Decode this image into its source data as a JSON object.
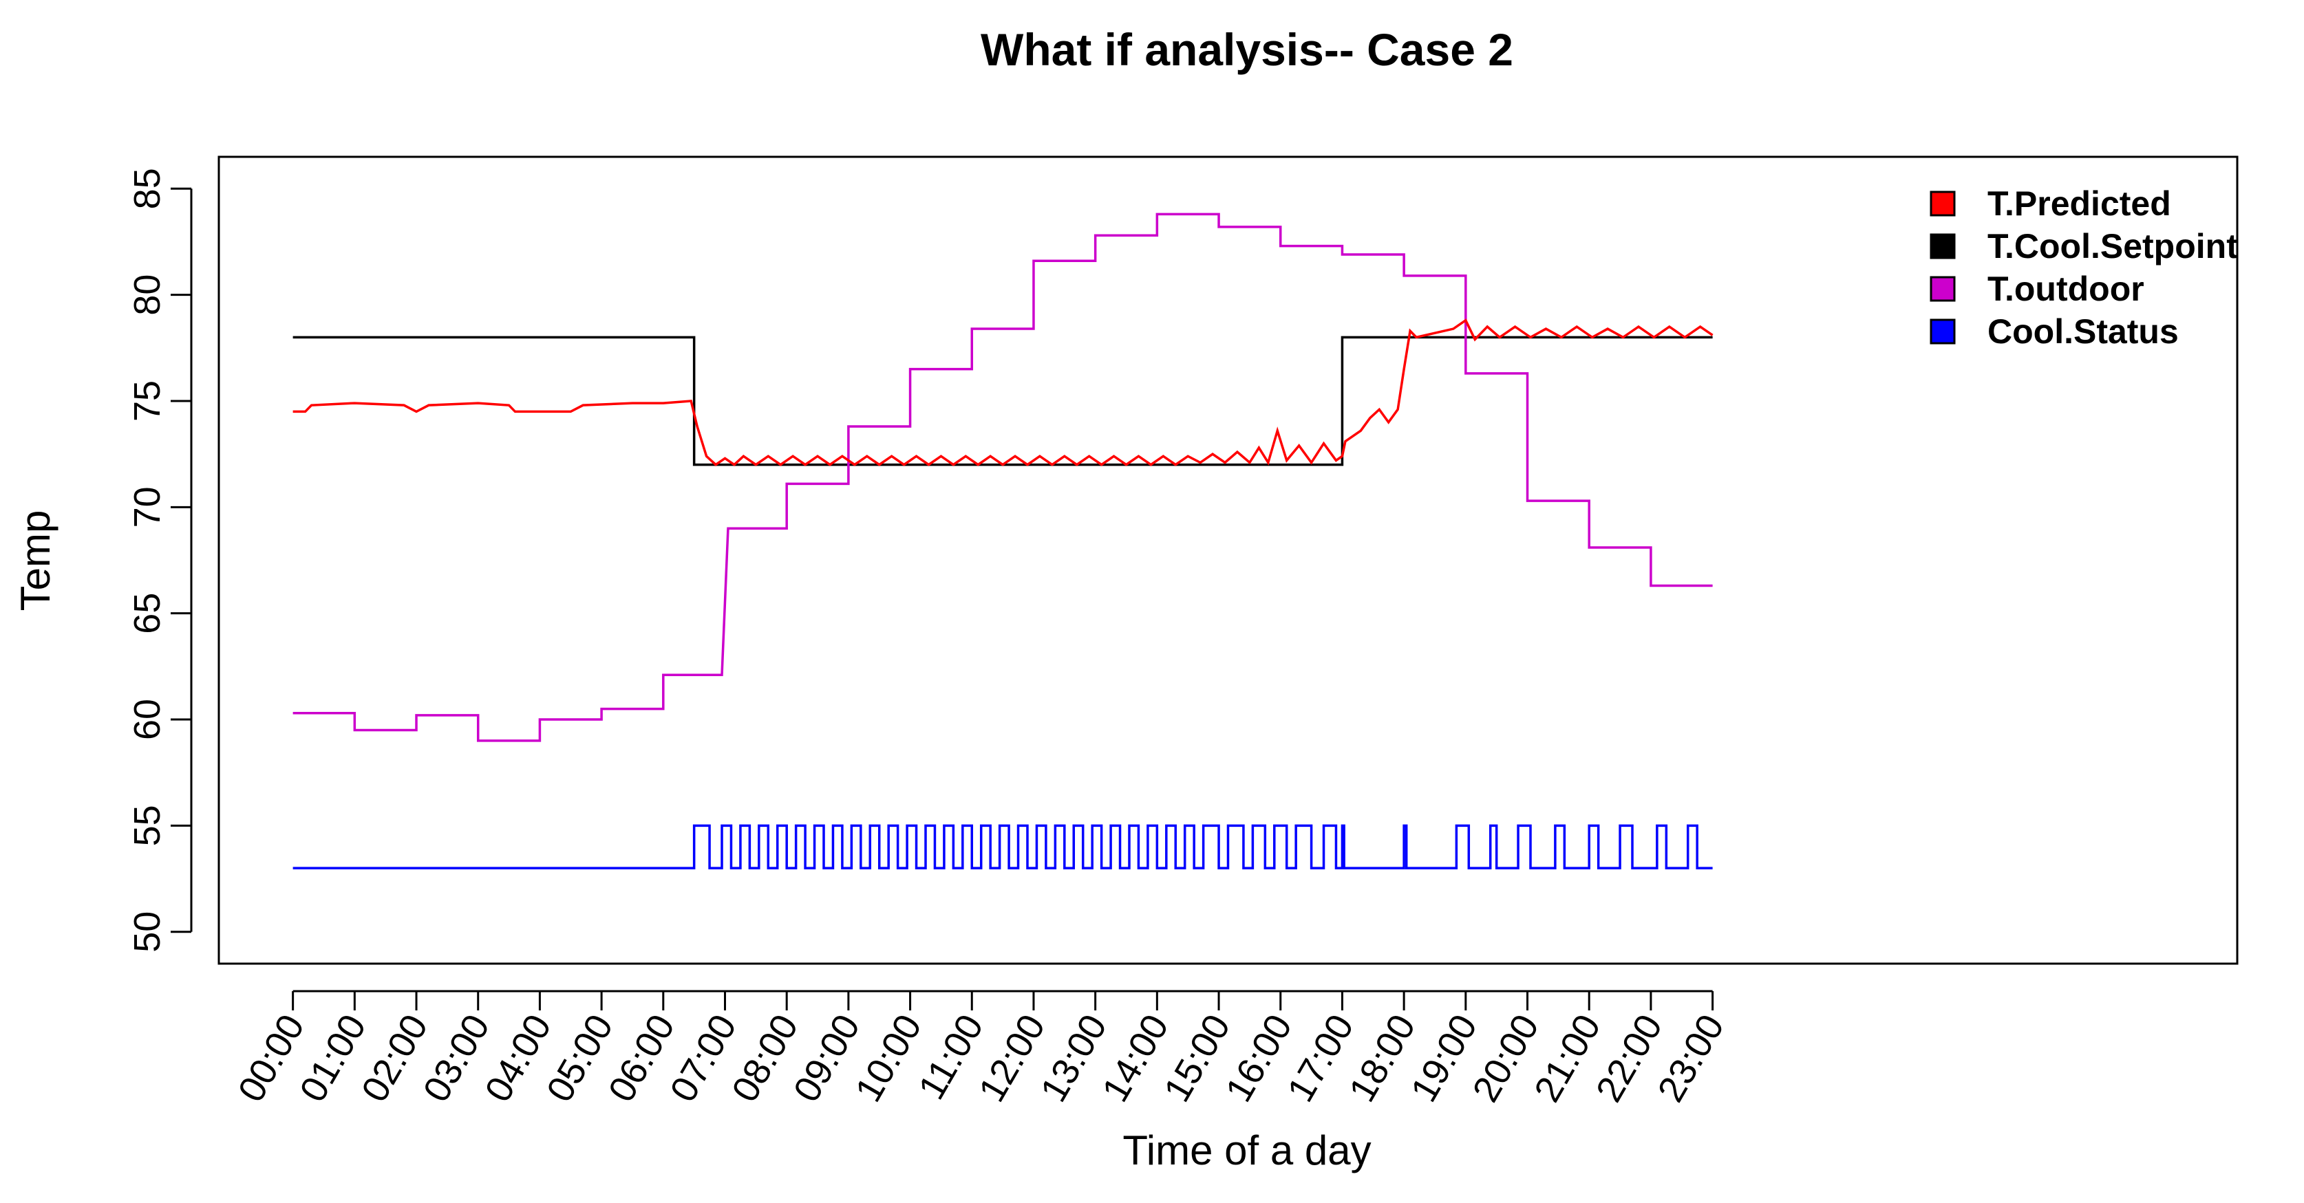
{
  "chart_data": {
    "type": "line",
    "title": "What if analysis-- Case 2",
    "xlabel": "Time of a day",
    "ylabel": "Temp",
    "xlim": [
      -1.2,
      31.5
    ],
    "ylim": [
      48.5,
      86.5
    ],
    "yticks": [
      50,
      55,
      60,
      65,
      70,
      75,
      80,
      85
    ],
    "x_tick_positions": [
      0,
      1,
      2,
      3,
      4,
      5,
      6,
      7,
      8,
      9,
      10,
      11,
      12,
      13,
      14,
      15,
      16,
      17,
      18,
      19,
      20,
      21,
      22,
      23
    ],
    "x_tick_labels": [
      "00:00",
      "01:00",
      "02:00",
      "03:00",
      "04:00",
      "05:00",
      "06:00",
      "07:00",
      "08:00",
      "09:00",
      "10:00",
      "11:00",
      "12:00",
      "13:00",
      "14:00",
      "15:00",
      "16:00",
      "17:00",
      "18:00",
      "19:00",
      "20:00",
      "21:00",
      "22:00",
      "23:00"
    ],
    "legend": {
      "position": "top-right",
      "entries": [
        {
          "label": "T.Predicted",
          "color": "#ff0000"
        },
        {
          "label": "T.Cool.Setpoint",
          "color": "#000000"
        },
        {
          "label": "T.outdoor",
          "color": "#cc00cc"
        },
        {
          "label": "Cool.Status",
          "color": "#0000ff"
        }
      ]
    },
    "series": [
      {
        "name": "T.Cool.Setpoint",
        "color": "#000000",
        "step": true,
        "points": [
          [
            0,
            78
          ],
          [
            6.5,
            78
          ],
          [
            6.5,
            72
          ],
          [
            17.0,
            72
          ],
          [
            17.0,
            78
          ],
          [
            23,
            78
          ]
        ]
      },
      {
        "name": "T.outdoor",
        "color": "#cc00cc",
        "step": true,
        "points": [
          [
            0,
            60.3
          ],
          [
            1.0,
            60.3
          ],
          [
            1.0,
            59.5
          ],
          [
            2.0,
            59.5
          ],
          [
            2.0,
            60.2
          ],
          [
            3.0,
            60.2
          ],
          [
            3.0,
            59.0
          ],
          [
            4.0,
            59.0
          ],
          [
            4.0,
            60.0
          ],
          [
            5.0,
            60.0
          ],
          [
            5.0,
            60.5
          ],
          [
            6.0,
            60.5
          ],
          [
            6.0,
            62.1
          ],
          [
            6.95,
            62.1
          ],
          [
            7.05,
            69.0
          ],
          [
            8.0,
            69.0
          ],
          [
            8.0,
            71.1
          ],
          [
            9.0,
            71.1
          ],
          [
            9.0,
            73.8
          ],
          [
            10.0,
            73.8
          ],
          [
            10.0,
            76.5
          ],
          [
            11.0,
            76.5
          ],
          [
            11.0,
            78.4
          ],
          [
            12.0,
            78.4
          ],
          [
            12.0,
            81.6
          ],
          [
            13.0,
            81.6
          ],
          [
            13.0,
            82.8
          ],
          [
            14.0,
            82.8
          ],
          [
            14.0,
            83.8
          ],
          [
            15.0,
            83.8
          ],
          [
            15.0,
            83.2
          ],
          [
            16.0,
            83.2
          ],
          [
            16.0,
            82.3
          ],
          [
            17.0,
            82.3
          ],
          [
            17.0,
            81.9
          ],
          [
            18.0,
            81.9
          ],
          [
            18.0,
            80.9
          ],
          [
            19.0,
            80.9
          ],
          [
            19.0,
            76.3
          ],
          [
            20.0,
            76.3
          ],
          [
            20.0,
            70.3
          ],
          [
            21.0,
            70.3
          ],
          [
            21.0,
            68.1
          ],
          [
            22.0,
            68.1
          ],
          [
            22.0,
            66.3
          ],
          [
            23.0,
            66.3
          ]
        ]
      },
      {
        "name": "T.Predicted",
        "color": "#ff0000",
        "step": false,
        "points": [
          [
            0,
            74.5
          ],
          [
            0.2,
            74.5
          ],
          [
            0.3,
            74.8
          ],
          [
            1.0,
            74.9
          ],
          [
            1.8,
            74.8
          ],
          [
            2.0,
            74.5
          ],
          [
            2.2,
            74.8
          ],
          [
            3.0,
            74.9
          ],
          [
            3.5,
            74.8
          ],
          [
            3.6,
            74.5
          ],
          [
            4.0,
            74.5
          ],
          [
            4.5,
            74.5
          ],
          [
            4.7,
            74.8
          ],
          [
            5.5,
            74.9
          ],
          [
            6.0,
            74.9
          ],
          [
            6.45,
            75.0
          ],
          [
            6.55,
            73.8
          ],
          [
            6.7,
            72.4
          ],
          [
            6.85,
            72.0
          ],
          [
            7.0,
            72.3
          ],
          [
            7.15,
            72.0
          ],
          [
            7.3,
            72.4
          ],
          [
            7.5,
            72.0
          ],
          [
            7.7,
            72.4
          ],
          [
            7.9,
            72.0
          ],
          [
            8.1,
            72.4
          ],
          [
            8.3,
            72.0
          ],
          [
            8.5,
            72.4
          ],
          [
            8.7,
            72.0
          ],
          [
            8.9,
            72.4
          ],
          [
            9.1,
            72.0
          ],
          [
            9.3,
            72.4
          ],
          [
            9.5,
            72.0
          ],
          [
            9.7,
            72.4
          ],
          [
            9.9,
            72.0
          ],
          [
            10.1,
            72.4
          ],
          [
            10.3,
            72.0
          ],
          [
            10.5,
            72.4
          ],
          [
            10.7,
            72.0
          ],
          [
            10.9,
            72.4
          ],
          [
            11.1,
            72.0
          ],
          [
            11.3,
            72.4
          ],
          [
            11.5,
            72.0
          ],
          [
            11.7,
            72.4
          ],
          [
            11.9,
            72.0
          ],
          [
            12.1,
            72.4
          ],
          [
            12.3,
            72.0
          ],
          [
            12.5,
            72.4
          ],
          [
            12.7,
            72.0
          ],
          [
            12.9,
            72.4
          ],
          [
            13.1,
            72.0
          ],
          [
            13.3,
            72.4
          ],
          [
            13.5,
            72.0
          ],
          [
            13.7,
            72.4
          ],
          [
            13.9,
            72.0
          ],
          [
            14.1,
            72.4
          ],
          [
            14.3,
            72.0
          ],
          [
            14.5,
            72.4
          ],
          [
            14.7,
            72.1
          ],
          [
            14.9,
            72.5
          ],
          [
            15.1,
            72.1
          ],
          [
            15.3,
            72.6
          ],
          [
            15.5,
            72.1
          ],
          [
            15.65,
            72.8
          ],
          [
            15.8,
            72.1
          ],
          [
            15.95,
            73.6
          ],
          [
            16.1,
            72.2
          ],
          [
            16.3,
            72.9
          ],
          [
            16.5,
            72.1
          ],
          [
            16.7,
            73.0
          ],
          [
            16.9,
            72.2
          ],
          [
            17.0,
            72.4
          ],
          [
            17.05,
            73.1
          ],
          [
            17.3,
            73.6
          ],
          [
            17.45,
            74.2
          ],
          [
            17.6,
            74.6
          ],
          [
            17.75,
            74.0
          ],
          [
            17.9,
            74.6
          ],
          [
            18.0,
            76.5
          ],
          [
            18.1,
            78.3
          ],
          [
            18.2,
            78.0
          ],
          [
            18.5,
            78.2
          ],
          [
            18.8,
            78.4
          ],
          [
            19.0,
            78.8
          ],
          [
            19.15,
            77.9
          ],
          [
            19.35,
            78.5
          ],
          [
            19.55,
            78.0
          ],
          [
            19.8,
            78.5
          ],
          [
            20.05,
            78.0
          ],
          [
            20.3,
            78.4
          ],
          [
            20.55,
            78.0
          ],
          [
            20.8,
            78.5
          ],
          [
            21.05,
            78.0
          ],
          [
            21.3,
            78.4
          ],
          [
            21.55,
            78.0
          ],
          [
            21.8,
            78.5
          ],
          [
            22.05,
            78.0
          ],
          [
            22.3,
            78.5
          ],
          [
            22.55,
            78.0
          ],
          [
            22.8,
            78.5
          ],
          [
            23.0,
            78.1
          ]
        ]
      },
      {
        "name": "Cool.Status",
        "color": "#0000ff",
        "step": true,
        "low": 53,
        "high": 55,
        "on_intervals": [
          [
            6.5,
            6.75
          ],
          [
            6.95,
            7.1
          ],
          [
            7.25,
            7.4
          ],
          [
            7.55,
            7.7
          ],
          [
            7.85,
            8.0
          ],
          [
            8.15,
            8.3
          ],
          [
            8.45,
            8.6
          ],
          [
            8.75,
            8.9
          ],
          [
            9.05,
            9.2
          ],
          [
            9.35,
            9.5
          ],
          [
            9.65,
            9.8
          ],
          [
            9.95,
            10.1
          ],
          [
            10.25,
            10.4
          ],
          [
            10.55,
            10.7
          ],
          [
            10.85,
            11.0
          ],
          [
            11.15,
            11.3
          ],
          [
            11.45,
            11.6
          ],
          [
            11.75,
            11.9
          ],
          [
            12.05,
            12.2
          ],
          [
            12.35,
            12.5
          ],
          [
            12.65,
            12.8
          ],
          [
            12.95,
            13.1
          ],
          [
            13.25,
            13.4
          ],
          [
            13.55,
            13.7
          ],
          [
            13.85,
            14.0
          ],
          [
            14.15,
            14.3
          ],
          [
            14.45,
            14.6
          ],
          [
            14.75,
            15.0
          ],
          [
            15.15,
            15.4
          ],
          [
            15.55,
            15.75
          ],
          [
            15.9,
            16.1
          ],
          [
            16.25,
            16.5
          ],
          [
            16.7,
            16.9
          ],
          [
            17.0,
            17.03
          ],
          [
            18.0,
            18.04
          ],
          [
            18.85,
            19.05
          ],
          [
            19.4,
            19.5
          ],
          [
            19.85,
            20.05
          ],
          [
            20.45,
            20.6
          ],
          [
            21.0,
            21.15
          ],
          [
            21.5,
            21.7
          ],
          [
            22.1,
            22.25
          ],
          [
            22.6,
            22.75
          ]
        ],
        "end": 23
      }
    ]
  }
}
